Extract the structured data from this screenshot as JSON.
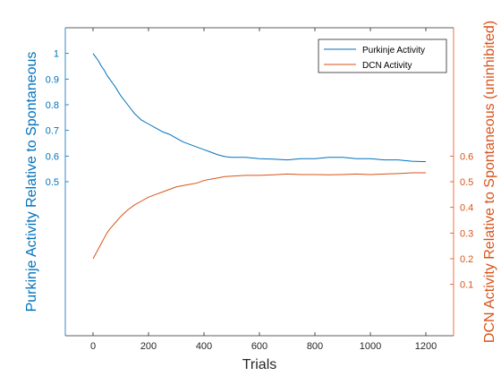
{
  "chart_data": {
    "type": "line",
    "title": "",
    "xlabel": "Trials",
    "ylabel_left": "Purkinje Activity Relative to Spontaneous",
    "ylabel_right": "DCN Activity Relative to Spontaneous (uninhibited)",
    "xlim": [
      -100,
      1300
    ],
    "ylim_left": [
      -0.1,
      1.1
    ],
    "ylim_right": [
      -0.1,
      1.1
    ],
    "x_ticks": [
      0,
      200,
      400,
      600,
      800,
      1000,
      1200
    ],
    "y_ticks_left": [
      0.5,
      0.6,
      0.7,
      0.8,
      0.9,
      1
    ],
    "y_ticks_right": [
      0.1,
      0.2,
      0.3,
      0.4,
      0.5,
      0.6
    ],
    "grid": false,
    "legend_position": "top-right",
    "series": [
      {
        "name": "Purkinje Activity",
        "axis": "left",
        "color": "#0072BD",
        "x": [
          0,
          10,
          20,
          30,
          40,
          50,
          60,
          80,
          100,
          125,
          150,
          175,
          200,
          225,
          250,
          275,
          300,
          325,
          350,
          375,
          400,
          425,
          450,
          475,
          500,
          550,
          600,
          650,
          700,
          750,
          800,
          850,
          900,
          950,
          1000,
          1050,
          1100,
          1150,
          1200
        ],
        "y": [
          1.0,
          0.985,
          0.97,
          0.95,
          0.935,
          0.915,
          0.9,
          0.87,
          0.835,
          0.8,
          0.765,
          0.74,
          0.725,
          0.71,
          0.695,
          0.685,
          0.67,
          0.655,
          0.645,
          0.635,
          0.625,
          0.615,
          0.605,
          0.598,
          0.595,
          0.595,
          0.59,
          0.588,
          0.585,
          0.59,
          0.59,
          0.595,
          0.595,
          0.59,
          0.59,
          0.585,
          0.585,
          0.58,
          0.578
        ]
      },
      {
        "name": "DCN Activity",
        "axis": "right",
        "color": "#D95319",
        "x": [
          0,
          10,
          20,
          30,
          40,
          50,
          60,
          80,
          100,
          125,
          150,
          175,
          200,
          225,
          250,
          275,
          300,
          325,
          350,
          375,
          400,
          425,
          450,
          475,
          500,
          550,
          600,
          650,
          700,
          750,
          800,
          850,
          900,
          950,
          1000,
          1050,
          1100,
          1150,
          1200
        ],
        "y": [
          0.2,
          0.22,
          0.24,
          0.26,
          0.28,
          0.3,
          0.315,
          0.34,
          0.365,
          0.39,
          0.41,
          0.425,
          0.44,
          0.45,
          0.46,
          0.47,
          0.48,
          0.485,
          0.49,
          0.495,
          0.505,
          0.51,
          0.515,
          0.52,
          0.522,
          0.525,
          0.525,
          0.527,
          0.53,
          0.528,
          0.528,
          0.527,
          0.528,
          0.53,
          0.528,
          0.53,
          0.532,
          0.535,
          0.535
        ]
      }
    ]
  }
}
